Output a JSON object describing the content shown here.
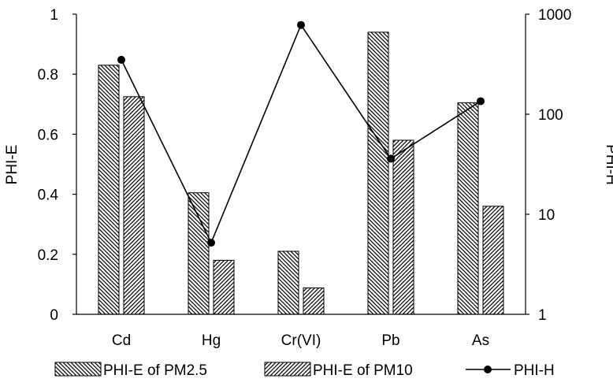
{
  "chart_data": {
    "type": "bar+line",
    "categories": [
      "Cd",
      "Hg",
      "Cr(VI)",
      "Pb",
      "As"
    ],
    "series": [
      {
        "name": "PHI-E of PM2.5",
        "type": "bar",
        "axis": "left",
        "pattern": "hatch-back",
        "values": [
          0.83,
          0.405,
          0.21,
          0.94,
          0.705
        ]
      },
      {
        "name": "PHI-E of PM10",
        "type": "bar",
        "axis": "left",
        "pattern": "hatch-forward",
        "values": [
          0.725,
          0.18,
          0.088,
          0.58,
          0.36
        ]
      },
      {
        "name": "PHI-H",
        "type": "line",
        "axis": "right",
        "marker": "circle",
        "values": [
          350,
          5.2,
          780,
          36,
          135
        ]
      }
    ],
    "y_left": {
      "label": "PHI-E",
      "range": [
        0,
        1
      ],
      "ticks": [
        "0",
        "0.2",
        "0.4",
        "0.6",
        "0.8",
        "1"
      ],
      "tick_values": [
        0,
        0.2,
        0.4,
        0.6,
        0.8,
        1
      ]
    },
    "y_right": {
      "label": "PHI-H",
      "scale": "log",
      "range": [
        1,
        1000
      ],
      "ticks": [
        "1",
        "10",
        "100",
        "1000"
      ],
      "tick_values": [
        1,
        10,
        100,
        1000
      ]
    },
    "grid": false,
    "legend_position": "bottom",
    "colors": {
      "bar_fill": "#ffffff",
      "hatch": "#000000",
      "line": "#000000"
    }
  }
}
